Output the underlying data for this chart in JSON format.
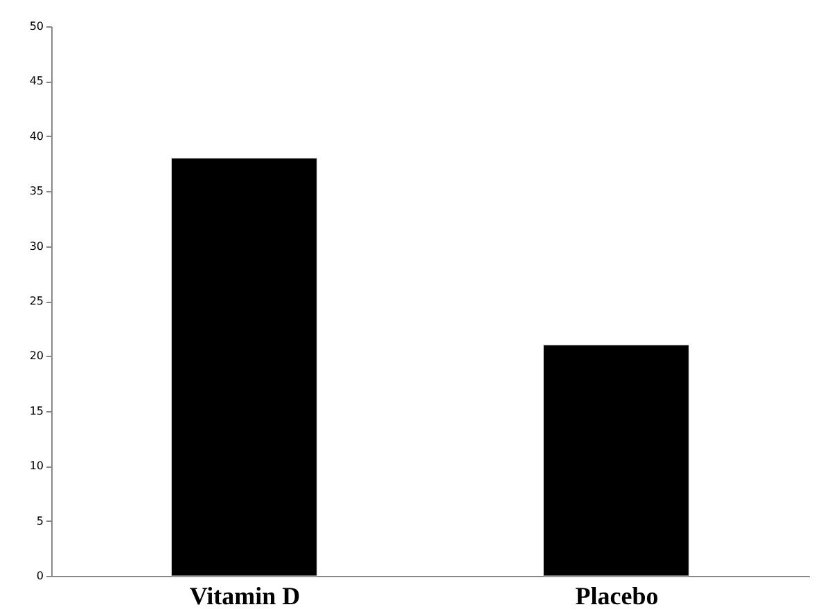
{
  "chart_data": {
    "type": "bar",
    "categories": [
      "Vitamin D",
      "Placebo"
    ],
    "values": [
      38,
      21
    ],
    "color": "#000000",
    "ylim": [
      0,
      50
    ],
    "yticks": [
      0,
      5,
      10,
      15,
      20,
      25,
      30,
      35,
      40,
      45,
      50
    ],
    "grid": false
  }
}
